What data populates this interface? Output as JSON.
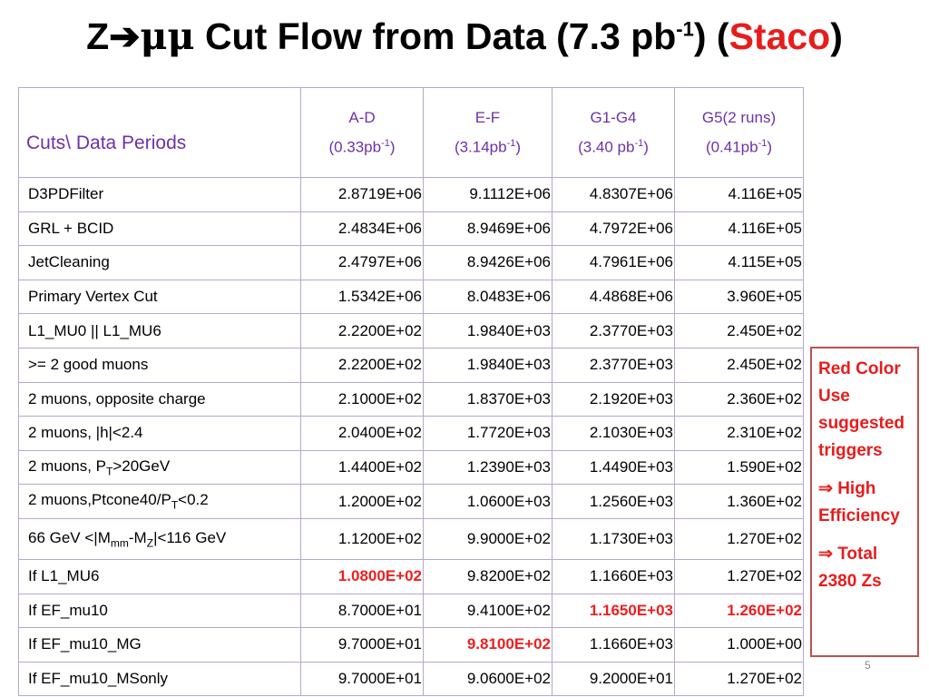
{
  "title": {
    "z": "Z",
    "arrow": "➔",
    "mumu": "μμ",
    "main": " Cut Flow from Data (7.3 pb",
    "sup": "-1",
    "paren_open": ") (",
    "staco": "Staco",
    "paren_close": ")"
  },
  "table": {
    "corner": "Cuts\\ Data Periods",
    "columns": [
      {
        "line1": "A-D",
        "line2_pre": "(0.33pb",
        "sup": "-1",
        "line2_post": ")"
      },
      {
        "line1": "E-F",
        "line2_pre": "(3.14pb",
        "sup": "-1",
        "line2_post": ")"
      },
      {
        "line1": "G1-G4",
        "line2_pre": "(3.40 pb",
        "sup": "-1",
        "line2_post": ")"
      },
      {
        "line1": "G5(2 runs)",
        "line2_pre": "(0.41pb",
        "sup": "-1",
        "line2_post": ")"
      }
    ],
    "rows": [
      {
        "label": "D3PDFilter",
        "values": [
          "2.8719E+06",
          "9.1112E+06",
          "4.8307E+06",
          "4.116E+05"
        ]
      },
      {
        "label": "GRL + BCID",
        "values": [
          "2.4834E+06",
          "8.9469E+06",
          "4.7972E+06",
          "4.116E+05"
        ]
      },
      {
        "label": "JetCleaning",
        "values": [
          "2.4797E+06",
          "8.9426E+06",
          "4.7961E+06",
          "4.115E+05"
        ]
      },
      {
        "label": "Primary Vertex Cut",
        "values": [
          "1.5342E+06",
          "8.0483E+06",
          "4.4868E+06",
          "3.960E+05"
        ]
      },
      {
        "label": "L1_MU0 || L1_MU6",
        "values": [
          "2.2200E+02",
          "1.9840E+03",
          "2.3770E+03",
          "2.450E+02"
        ]
      },
      {
        "label": ">= 2 good muons",
        "values": [
          "2.2200E+02",
          "1.9840E+03",
          "2.3770E+03",
          "2.450E+02"
        ]
      },
      {
        "label": "2 muons, opposite charge",
        "values": [
          "2.1000E+02",
          "1.8370E+03",
          "2.1920E+03",
          "2.360E+02"
        ]
      },
      {
        "label": "2 muons, |h|<2.4",
        "values": [
          "2.0400E+02",
          "1.7720E+03",
          "2.1030E+03",
          "2.310E+02"
        ]
      },
      {
        "label_pre": "2 muons, P",
        "label_sub": "T",
        "label_post": ">20GeV",
        "values": [
          "1.4400E+02",
          "1.2390E+03",
          "1.4490E+03",
          "1.590E+02"
        ]
      },
      {
        "label_pre": "2 muons,Ptcone40/P",
        "label_sub": "T",
        "label_post": "<0.2",
        "values": [
          "1.2000E+02",
          "1.0600E+03",
          "1.2560E+03",
          "1.360E+02"
        ]
      },
      {
        "label_pre": "66 GeV <|M",
        "label_sub": "mm",
        "label_mid": "-M",
        "label_sub2": "Z",
        "label_post": "|<116 GeV",
        "values": [
          "1.1200E+02",
          "9.9000E+02",
          "1.1730E+03",
          "1.270E+02"
        ]
      },
      {
        "label": "If  L1_MU6",
        "values": [
          "1.0800E+02",
          "9.8200E+02",
          "1.1660E+03",
          "1.270E+02"
        ]
      },
      {
        "label": "If  EF_mu10",
        "values": [
          "8.7000E+01",
          "9.4100E+02",
          "1.1650E+03",
          "1.260E+02"
        ]
      },
      {
        "label": "If  EF_mu10_MG",
        "values": [
          "9.7000E+01",
          "9.8100E+02",
          "1.1660E+03",
          "1.000E+00"
        ]
      },
      {
        "label": "If  EF_mu10_MSonly",
        "values": [
          "9.7000E+01",
          "9.0600E+02",
          "9.2000E+01",
          "1.270E+02"
        ]
      }
    ]
  },
  "note": {
    "line1": "Red Color Use suggested triggers",
    "line2": "⇒ High Efficiency",
    "line3": "⇒ Total 2380 Zs"
  },
  "page_number": "5",
  "colors": {
    "accent_red": "#e81c1c",
    "header_purple": "#6d31a8",
    "table_border": "#b7a7cf",
    "note_border": "#c0504d"
  }
}
